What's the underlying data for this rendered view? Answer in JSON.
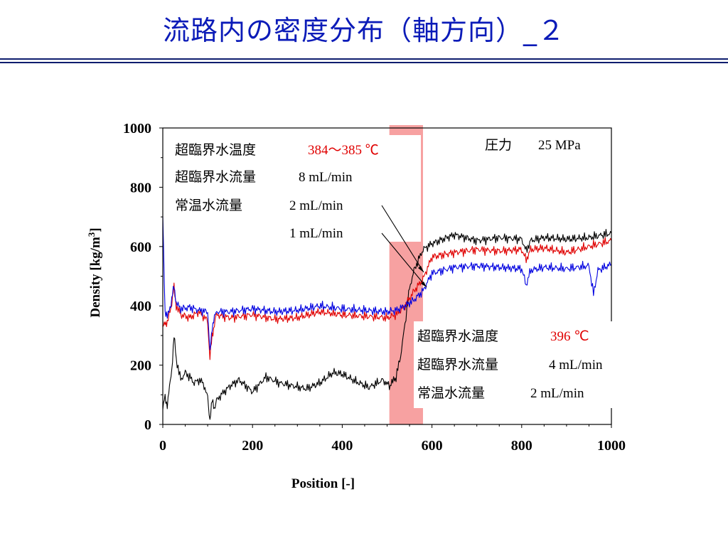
{
  "slide": {
    "title": "流路内の密度分布（軸方向）_２"
  },
  "chart_data": {
    "type": "line",
    "title": "",
    "xlabel": "Position [-]",
    "ylabel": "Density [kg/m",
    "ylabel_sup": "3",
    "ylabel_end": "]",
    "xlim": [
      0,
      1000
    ],
    "ylim": [
      0,
      1000
    ],
    "xticks": [
      "0",
      "200",
      "400",
      "600",
      "800",
      "1000"
    ],
    "yticks": [
      "0",
      "200",
      "400",
      "600",
      "800",
      "1000"
    ],
    "grid": false,
    "highlight_band": {
      "x_from": 505,
      "x_to": 580,
      "color": "#f7a1a1"
    },
    "series": [
      {
        "color": "#000000",
        "x": [
          0,
          5,
          10,
          15,
          20,
          25,
          30,
          40,
          50,
          60,
          70,
          80,
          90,
          100,
          105,
          110,
          115,
          120,
          130,
          150,
          170,
          200,
          230,
          260,
          290,
          320,
          350,
          380,
          400,
          430,
          460,
          490,
          505,
          520,
          530,
          540,
          550,
          560,
          570,
          580,
          600,
          650,
          700,
          750,
          800,
          810,
          820,
          850,
          900,
          950,
          1000
        ],
        "y": [
          50,
          90,
          70,
          120,
          190,
          295,
          220,
          150,
          175,
          160,
          140,
          150,
          140,
          90,
          20,
          75,
          60,
          80,
          100,
          130,
          150,
          110,
          160,
          140,
          130,
          120,
          140,
          175,
          170,
          145,
          125,
          150,
          130,
          160,
          230,
          340,
          460,
          520,
          555,
          590,
          610,
          640,
          620,
          630,
          625,
          585,
          620,
          630,
          625,
          630,
          645
        ]
      },
      {
        "color": "#e00000",
        "x": [
          0,
          5,
          10,
          20,
          25,
          30,
          40,
          60,
          80,
          100,
          105,
          110,
          115,
          120,
          150,
          200,
          250,
          300,
          350,
          400,
          450,
          500,
          520,
          540,
          560,
          580,
          600,
          650,
          700,
          750,
          800,
          810,
          820,
          850,
          900,
          950,
          1000
        ],
        "y": [
          320,
          350,
          340,
          410,
          460,
          400,
          370,
          360,
          380,
          350,
          220,
          300,
          340,
          370,
          360,
          370,
          355,
          360,
          380,
          370,
          365,
          360,
          370,
          400,
          450,
          490,
          565,
          580,
          590,
          585,
          590,
          555,
          590,
          595,
          580,
          600,
          620
        ]
      },
      {
        "color": "#0000e0",
        "x": [
          0,
          5,
          10,
          20,
          25,
          30,
          40,
          60,
          80,
          100,
          105,
          110,
          115,
          120,
          150,
          200,
          250,
          300,
          350,
          400,
          450,
          500,
          520,
          540,
          560,
          580,
          600,
          650,
          700,
          750,
          800,
          810,
          820,
          850,
          900,
          950,
          960,
          970,
          1000
        ],
        "y": [
          700,
          380,
          360,
          420,
          470,
          410,
          390,
          395,
          385,
          380,
          240,
          330,
          360,
          380,
          380,
          390,
          380,
          385,
          400,
          390,
          385,
          380,
          385,
          400,
          420,
          450,
          510,
          530,
          535,
          530,
          525,
          470,
          520,
          530,
          525,
          535,
          440,
          520,
          540
        ]
      }
    ],
    "annotation_top": {
      "lines": [
        {
          "label": "超臨界水温度",
          "value": "384～385 ℃",
          "value_color": "#e00000"
        },
        {
          "label": "超臨界水流量",
          "value": "8 mL/min",
          "value_color": "#000000"
        },
        {
          "label": "常温水流量",
          "value": "2 mL/min",
          "value_color": "#000000"
        },
        {
          "label": "",
          "value": "1 mL/min",
          "value_color": "#000000"
        }
      ]
    },
    "annotation_pressure": {
      "label": "圧力",
      "value": "25 MPa"
    },
    "annotation_bottom": {
      "lines": [
        {
          "label": "超臨界水温度",
          "value": "396 ℃",
          "value_color": "#e00000"
        },
        {
          "label": "超臨界水流量",
          "value": "4 mL/min",
          "value_color": "#000000"
        },
        {
          "label": "常温水流量",
          "value": "2 mL/min",
          "value_color": "#000000"
        }
      ]
    }
  }
}
